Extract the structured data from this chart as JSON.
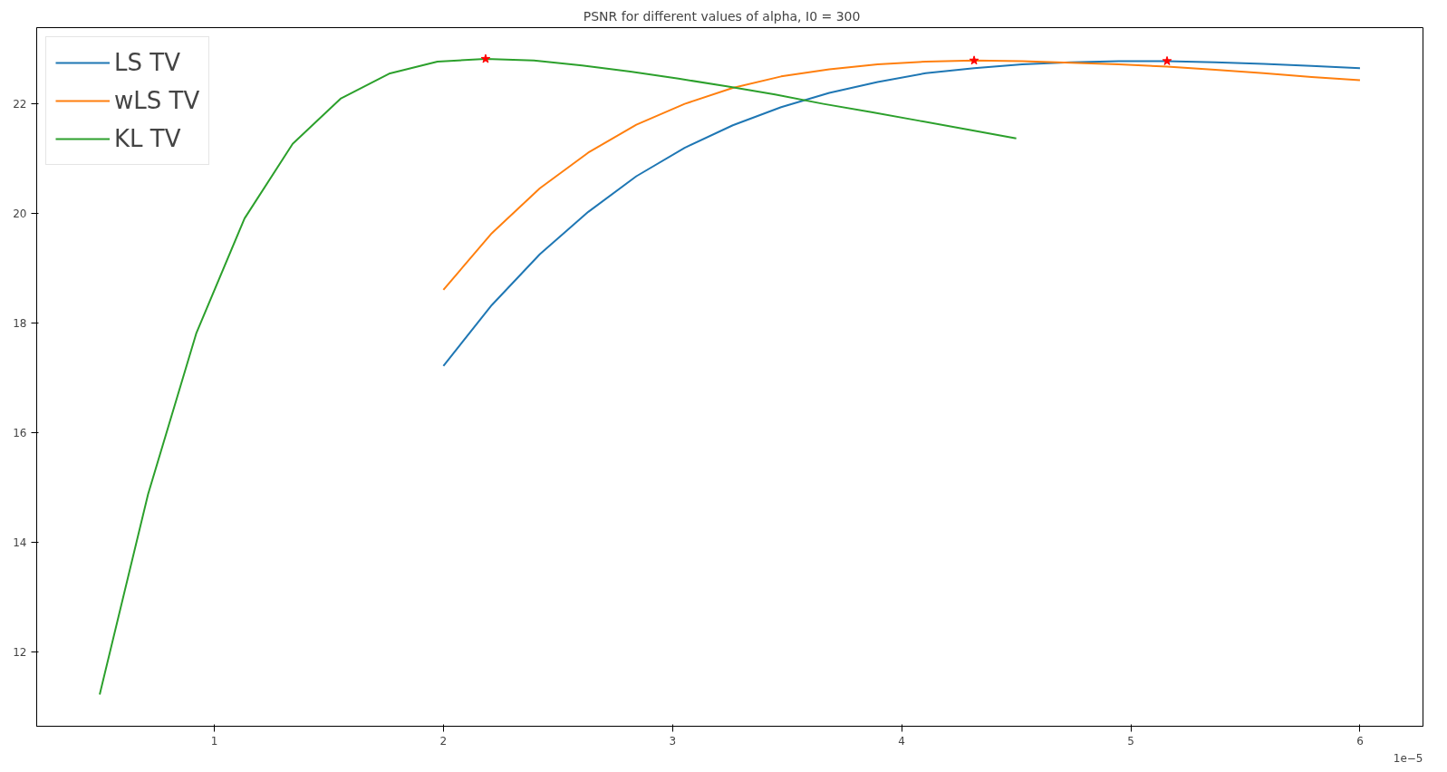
{
  "chart_data": {
    "type": "line",
    "title": "PSNR for different values of alpha, I0 =     300",
    "annotations": [
      "1e−5"
    ],
    "xlim": [
      0.225,
      6.275
    ],
    "xticks": [
      1,
      2,
      3,
      4,
      5,
      6
    ],
    "ylim": [
      10.65,
      23.39
    ],
    "yticks": [
      12,
      14,
      16,
      18,
      20,
      22
    ],
    "grid": false,
    "legend": "top left",
    "line_style": "solid",
    "series": [
      {
        "name": "LS TV",
        "color": "#1f77b4",
        "x": [
          2,
          2.211,
          2.421,
          2.632,
          2.842,
          3.053,
          3.263,
          3.474,
          3.684,
          3.895,
          4.105,
          4.316,
          4.526,
          4.737,
          4.947,
          5.158,
          5.368,
          5.579,
          5.789,
          6
        ],
        "values": [
          17.22,
          18.33,
          19.26,
          20.03,
          20.68,
          21.2,
          21.61,
          21.94,
          22.2,
          22.4,
          22.56,
          22.65,
          22.72,
          22.76,
          22.78,
          22.78,
          22.76,
          22.73,
          22.69,
          22.65
        ]
      },
      {
        "name": "wLS TV",
        "color": "#ff7f0e",
        "x": [
          2,
          2.211,
          2.421,
          2.632,
          2.842,
          3.053,
          3.263,
          3.474,
          3.684,
          3.895,
          4.105,
          4.316,
          4.526,
          4.737,
          4.947,
          5.158,
          5.368,
          5.579,
          5.789,
          6
        ],
        "values": [
          18.61,
          19.64,
          20.46,
          21.11,
          21.62,
          22.0,
          22.29,
          22.5,
          22.63,
          22.72,
          22.77,
          22.79,
          22.78,
          22.75,
          22.72,
          22.68,
          22.62,
          22.56,
          22.49,
          22.43
        ]
      },
      {
        "name": "KL TV",
        "color": "#2ca02c",
        "x": [
          0.5,
          0.711,
          0.921,
          1.132,
          1.342,
          1.553,
          1.763,
          1.974,
          2.184,
          2.395,
          2.605,
          2.816,
          3.026,
          3.237,
          3.447,
          3.658,
          3.868,
          4.079,
          4.289,
          4.5
        ],
        "values": [
          11.23,
          14.88,
          17.81,
          19.91,
          21.27,
          22.1,
          22.55,
          22.77,
          22.82,
          22.79,
          22.7,
          22.59,
          22.46,
          22.32,
          22.17,
          22.0,
          21.85,
          21.69,
          21.53,
          21.37
        ]
      },
      {
        "type": "scatter",
        "color": "#ff0000",
        "marker": "star",
        "x": [
          2.184,
          4.316,
          5.158
        ],
        "values": [
          22.82,
          22.79,
          22.78
        ]
      }
    ]
  }
}
